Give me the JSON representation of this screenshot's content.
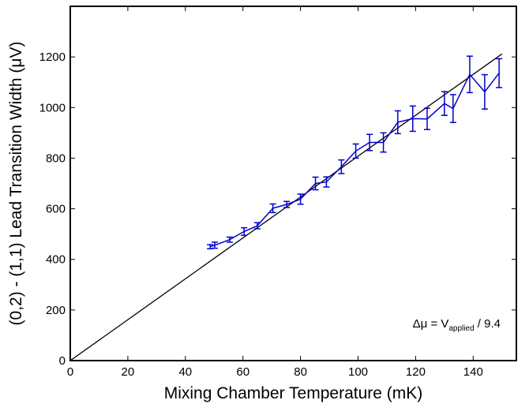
{
  "chart_data": {
    "type": "line",
    "title": "",
    "xlabel": "Mixing Chamber Temperature (mK)",
    "ylabel": "(0,2) - (1,1) Lead Transition Width (μV)",
    "xlim": [
      0,
      155
    ],
    "ylim": [
      0,
      1400
    ],
    "xticks": [
      0,
      20,
      40,
      60,
      80,
      100,
      120,
      140
    ],
    "yticks": [
      0,
      200,
      400,
      600,
      800,
      1000,
      1200
    ],
    "grid": false,
    "legend": "none",
    "series": [
      {
        "color": "#0000cc",
        "marker": "errorbar",
        "x": [
          48.6,
          50.2,
          55.4,
          60.4,
          65.0,
          70.4,
          75.2,
          80.0,
          85.2,
          89.0,
          94.2,
          99.2,
          104.0,
          108.8,
          113.8,
          119.0,
          124.0,
          130.0,
          133.0,
          138.8,
          144.0,
          149.0
        ],
        "y": [
          450,
          456,
          478,
          510,
          533,
          602,
          617,
          638,
          700,
          706,
          766,
          828,
          862,
          862,
          942,
          956,
          955,
          1016,
          996,
          1131,
          1062,
          1136
        ],
        "err": [
          8,
          12,
          10,
          15,
          12,
          17,
          12,
          20,
          25,
          20,
          27,
          28,
          32,
          38,
          45,
          50,
          42,
          47,
          55,
          72,
          68,
          57
        ]
      },
      {
        "color": "#000000",
        "marker": "none",
        "x": [
          0,
          150
        ],
        "y": [
          0,
          1212
        ]
      }
    ],
    "annotations": [
      {
        "prefix": "Δμ = V",
        "subscript": "applied",
        "suffix": " / 9.4"
      }
    ]
  }
}
